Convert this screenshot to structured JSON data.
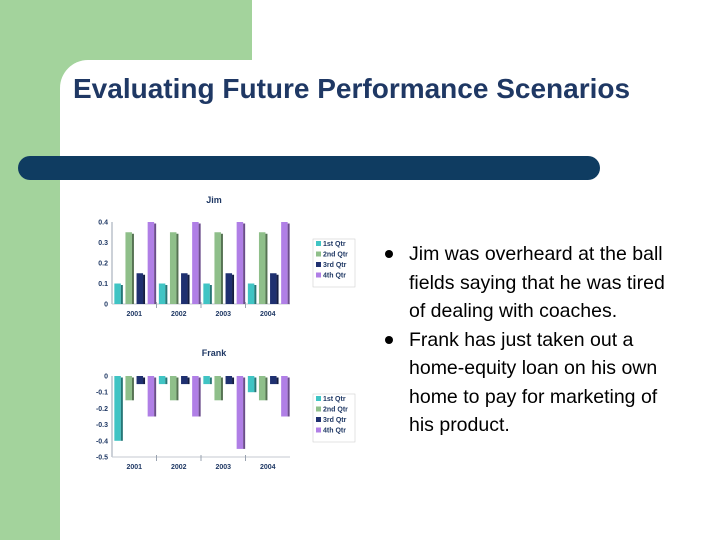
{
  "slide": {
    "title": "Evaluating Future Performance Scenarios",
    "bullets": [
      "Jim was overheard at the ball fields saying that he was tired of dealing with coaches.",
      "Frank has just taken out a home-equity loan on his own home to pay for marketing of his product."
    ]
  },
  "colors": {
    "green_accent": "#a3d39c",
    "rule": "#0f3c61",
    "title_text": "#1f3864",
    "series": [
      "#40c4c4",
      "#8fbf8a",
      "#1f3070",
      "#b07fe6"
    ]
  },
  "chart_data": [
    {
      "type": "bar",
      "title": "Jim",
      "categories": [
        "2001",
        "2002",
        "2003",
        "2004"
      ],
      "ylim": [
        0,
        0.4
      ],
      "yticks": [
        0,
        0.1,
        0.2,
        0.3,
        0.4
      ],
      "ytick_labels": [
        "0",
        "0.1",
        "0.2",
        "0.3",
        "0.4"
      ],
      "grid": false,
      "legend_position": "right",
      "series": [
        {
          "name": "1st Qtr",
          "values": [
            0.1,
            0.1,
            0.1,
            0.1
          ]
        },
        {
          "name": "2nd Qtr",
          "values": [
            0.35,
            0.35,
            0.35,
            0.35
          ]
        },
        {
          "name": "3rd Qtr",
          "values": [
            0.15,
            0.15,
            0.15,
            0.15
          ]
        },
        {
          "name": "4th Qtr",
          "values": [
            0.4,
            0.4,
            0.4,
            0.4
          ]
        }
      ]
    },
    {
      "type": "bar",
      "title": "Frank",
      "categories": [
        "2001",
        "2002",
        "2003",
        "2004"
      ],
      "ylim": [
        -0.5,
        0
      ],
      "yticks": [
        0,
        -0.1,
        -0.2,
        -0.3,
        -0.4,
        -0.5
      ],
      "ytick_labels": [
        "0",
        "-0.1",
        "-0.2",
        "-0.3",
        "-0.4",
        "-0.5"
      ],
      "grid": false,
      "legend_position": "right",
      "series": [
        {
          "name": "1st Qtr",
          "values": [
            -0.4,
            -0.05,
            -0.05,
            -0.1
          ]
        },
        {
          "name": "2nd Qtr",
          "values": [
            -0.15,
            -0.15,
            -0.15,
            -0.15
          ]
        },
        {
          "name": "3rd Qtr",
          "values": [
            -0.05,
            -0.05,
            -0.05,
            -0.05
          ]
        },
        {
          "name": "4th Qtr",
          "values": [
            -0.25,
            -0.25,
            -0.45,
            -0.25
          ]
        }
      ]
    }
  ]
}
